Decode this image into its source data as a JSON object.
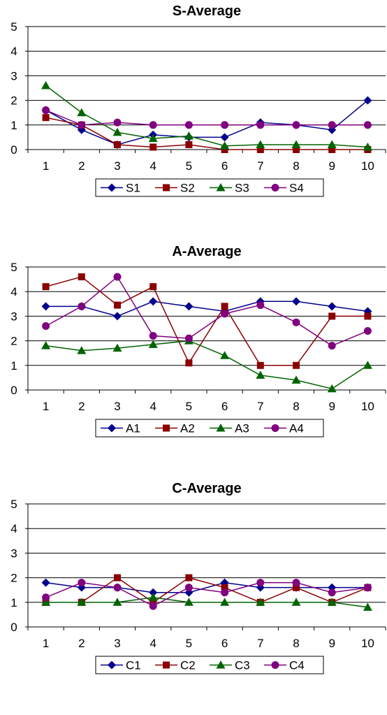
{
  "chart_data": [
    {
      "type": "line",
      "title": "S-Average",
      "xlabel": "",
      "ylabel": "",
      "ylim": [
        0,
        5
      ],
      "yticks": [
        "0",
        "1",
        "2",
        "3",
        "4",
        "5"
      ],
      "categories": [
        "1",
        "2",
        "3",
        "4",
        "5",
        "6",
        "7",
        "8",
        "9",
        "10"
      ],
      "gridlines": true,
      "legend_position": "bottom",
      "series": [
        {
          "name": "S1",
          "color": "#00008B",
          "marker": "diamond",
          "values": [
            1.6,
            0.8,
            0.2,
            0.6,
            0.5,
            0.5,
            1.1,
            1.0,
            0.8,
            2.0
          ]
        },
        {
          "name": "S2",
          "color": "#8B0000",
          "marker": "square",
          "values": [
            1.3,
            1.0,
            0.2,
            0.1,
            0.2,
            0.0,
            0.0,
            0.0,
            0.0,
            0.0
          ]
        },
        {
          "name": "S3",
          "color": "#006400",
          "marker": "triangle",
          "values": [
            2.6,
            1.5,
            0.7,
            0.45,
            0.55,
            0.15,
            0.2,
            0.2,
            0.2,
            0.1
          ]
        },
        {
          "name": "S4",
          "color": "#800080",
          "marker": "circle",
          "values": [
            1.6,
            1.0,
            1.1,
            1.0,
            1.0,
            1.0,
            1.0,
            1.0,
            1.0,
            1.0
          ]
        }
      ]
    },
    {
      "type": "line",
      "title": "A-Average",
      "xlabel": "",
      "ylabel": "",
      "ylim": [
        0,
        5
      ],
      "yticks": [
        "0",
        "1",
        "2",
        "3",
        "4",
        "5"
      ],
      "categories": [
        "1",
        "2",
        "3",
        "4",
        "5",
        "6",
        "7",
        "8",
        "9",
        "10"
      ],
      "gridlines": true,
      "legend_position": "bottom",
      "series": [
        {
          "name": "A1",
          "color": "#00008B",
          "marker": "diamond",
          "values": [
            3.4,
            3.4,
            3.0,
            3.6,
            3.4,
            3.2,
            3.6,
            3.6,
            3.4,
            3.2
          ]
        },
        {
          "name": "A2",
          "color": "#8B0000",
          "marker": "square",
          "values": [
            4.2,
            4.6,
            3.45,
            4.2,
            1.1,
            3.4,
            1.0,
            1.0,
            3.0,
            3.0
          ]
        },
        {
          "name": "A3",
          "color": "#006400",
          "marker": "triangle",
          "values": [
            1.8,
            1.6,
            1.7,
            1.85,
            2.0,
            1.4,
            0.6,
            0.4,
            0.05,
            1.0
          ]
        },
        {
          "name": "A4",
          "color": "#800080",
          "marker": "circle",
          "values": [
            2.6,
            3.4,
            4.6,
            2.2,
            2.1,
            3.1,
            3.45,
            2.75,
            1.8,
            2.4
          ]
        }
      ]
    },
    {
      "type": "line",
      "title": "C-Average",
      "xlabel": "",
      "ylabel": "",
      "ylim": [
        0,
        5
      ],
      "yticks": [
        "0",
        "1",
        "2",
        "3",
        "4",
        "5"
      ],
      "categories": [
        "1",
        "2",
        "3",
        "4",
        "5",
        "6",
        "7",
        "8",
        "9",
        "10"
      ],
      "gridlines": true,
      "legend_position": "bottom",
      "series": [
        {
          "name": "C1",
          "color": "#00008B",
          "marker": "diamond",
          "values": [
            1.8,
            1.6,
            1.6,
            1.4,
            1.4,
            1.8,
            1.6,
            1.6,
            1.6,
            1.6
          ]
        },
        {
          "name": "C2",
          "color": "#8B0000",
          "marker": "square",
          "values": [
            1.0,
            1.0,
            2.0,
            1.0,
            2.0,
            1.6,
            1.0,
            1.6,
            1.0,
            1.6
          ]
        },
        {
          "name": "C3",
          "color": "#006400",
          "marker": "triangle",
          "values": [
            1.0,
            1.0,
            1.0,
            1.2,
            1.0,
            1.0,
            1.0,
            1.0,
            1.0,
            0.8
          ]
        },
        {
          "name": "C4",
          "color": "#800080",
          "marker": "circle",
          "values": [
            1.2,
            1.8,
            1.6,
            0.85,
            1.6,
            1.4,
            1.8,
            1.8,
            1.4,
            1.6
          ]
        }
      ]
    }
  ]
}
